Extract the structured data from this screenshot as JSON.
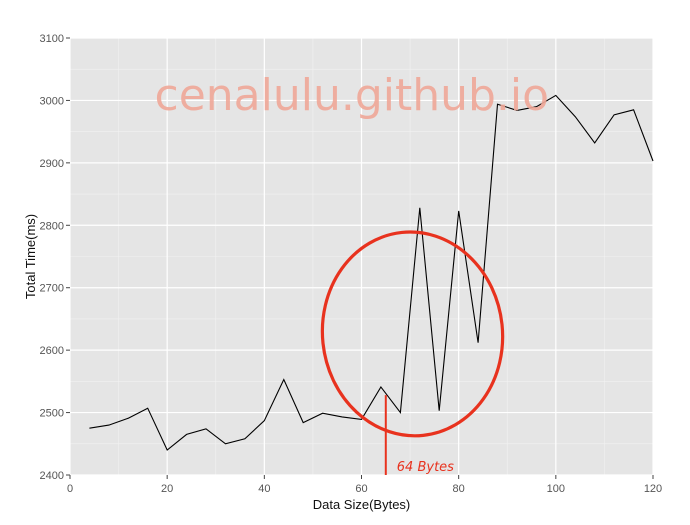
{
  "chart_data": {
    "type": "line",
    "title": "",
    "xlabel": "Data Size(Bytes)",
    "ylabel": "Total Time(ms)",
    "xlim": [
      0,
      120
    ],
    "ylim": [
      2400,
      3100
    ],
    "x_ticks": [
      0,
      20,
      40,
      60,
      80,
      100,
      120
    ],
    "y_ticks": [
      2400,
      2500,
      2600,
      2700,
      2800,
      2900,
      3000,
      3100
    ],
    "grid": true,
    "legend": "none",
    "background_color": "#e5e5e5",
    "line_color": "#000000",
    "series": [
      {
        "x": [
          4,
          8,
          12,
          16,
          20,
          24,
          28,
          32,
          36,
          40,
          44,
          48,
          52,
          56,
          60,
          64,
          68,
          72,
          76,
          80,
          84,
          88,
          92,
          96,
          100,
          104,
          108,
          112,
          116,
          120
        ],
        "values": [
          2475,
          2480,
          2491,
          2507,
          2440,
          2465,
          2474,
          2450,
          2458,
          2487,
          2553,
          2484,
          2499,
          2493,
          2489,
          2541,
          2500,
          2828,
          2503,
          2823,
          2612,
          2994,
          2984,
          2990,
          3008,
          2974,
          2932,
          2977,
          2985,
          2903
        ]
      }
    ],
    "annotations": {
      "watermark": "cenalulu.github.io",
      "marker_label": "64 Bytes",
      "marker_x": 65,
      "circle_color": "#e8321e"
    }
  }
}
